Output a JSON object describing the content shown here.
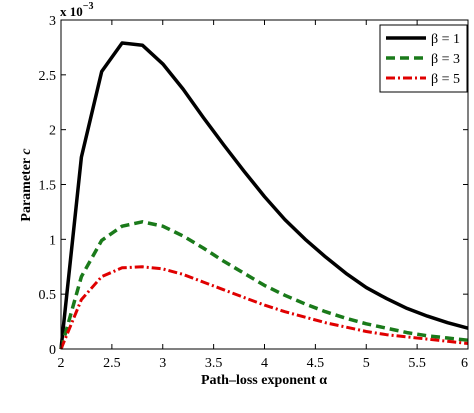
{
  "chart_data": {
    "type": "line",
    "xlabel": "Path–loss exponent  α",
    "ylabel": "Parameter c",
    "ylabel_main": "Parameter ",
    "ylabel_var": "c",
    "y_multiplier": "x 10",
    "y_multiplier_exp": "−3",
    "xlim": [
      2,
      6
    ],
    "ylim": [
      0,
      3
    ],
    "x_ticks": [
      "2",
      "2.5",
      "3",
      "3.5",
      "4",
      "4.5",
      "5",
      "5.5",
      "6"
    ],
    "y_ticks": [
      "0",
      "0.5",
      "1",
      "1.5",
      "2",
      "2.5",
      "3"
    ],
    "grid": false,
    "legend_position": "top-right",
    "series": [
      {
        "name": "β = 1",
        "color": "#000000",
        "style": "solid",
        "x": [
          2.0,
          2.2,
          2.4,
          2.6,
          2.8,
          3.0,
          3.2,
          3.4,
          3.6,
          3.8,
          4.0,
          4.2,
          4.4,
          4.6,
          4.8,
          5.0,
          5.2,
          5.4,
          5.6,
          5.8,
          6.0
        ],
        "values": [
          0.0,
          1.75,
          2.53,
          2.79,
          2.77,
          2.6,
          2.37,
          2.11,
          1.86,
          1.62,
          1.39,
          1.18,
          1.0,
          0.84,
          0.69,
          0.56,
          0.46,
          0.37,
          0.3,
          0.24,
          0.19
        ]
      },
      {
        "name": "β = 3",
        "color": "#1a7a1a",
        "style": "dashed",
        "x": [
          2.0,
          2.2,
          2.4,
          2.6,
          2.8,
          3.0,
          3.2,
          3.4,
          3.6,
          3.8,
          4.0,
          4.2,
          4.4,
          4.6,
          4.8,
          5.0,
          5.2,
          5.4,
          5.6,
          5.8,
          6.0
        ],
        "values": [
          0.0,
          0.66,
          0.99,
          1.12,
          1.16,
          1.12,
          1.03,
          0.92,
          0.8,
          0.69,
          0.58,
          0.49,
          0.41,
          0.34,
          0.28,
          0.23,
          0.19,
          0.15,
          0.12,
          0.1,
          0.08
        ]
      },
      {
        "name": "β = 5",
        "color": "#e00000",
        "style": "dashdot",
        "x": [
          2.0,
          2.2,
          2.4,
          2.6,
          2.8,
          3.0,
          3.2,
          3.4,
          3.6,
          3.8,
          4.0,
          4.2,
          4.4,
          4.6,
          4.8,
          5.0,
          5.2,
          5.4,
          5.6,
          5.8,
          6.0
        ],
        "values": [
          0.0,
          0.45,
          0.66,
          0.74,
          0.75,
          0.73,
          0.68,
          0.61,
          0.54,
          0.47,
          0.4,
          0.34,
          0.29,
          0.24,
          0.2,
          0.16,
          0.13,
          0.11,
          0.09,
          0.07,
          0.05
        ]
      }
    ]
  }
}
